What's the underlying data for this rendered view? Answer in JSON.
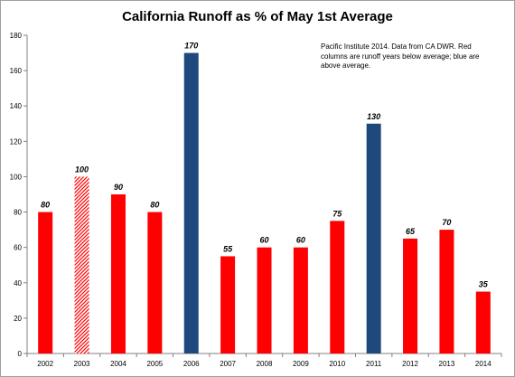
{
  "chart_data": {
    "type": "bar",
    "title": "California Runoff as % of May 1st Average",
    "annotation": "Pacific Institute 2014. Data from CA DWR. Red columns are runoff years below average; blue are above average.",
    "categories": [
      "2002",
      "2003",
      "2004",
      "2005",
      "2006",
      "2007",
      "2008",
      "2009",
      "2010",
      "2011",
      "2012",
      "2013",
      "2014"
    ],
    "values": [
      80,
      100,
      90,
      80,
      170,
      55,
      60,
      60,
      75,
      130,
      65,
      70,
      35
    ],
    "value_labels": [
      "80",
      "100",
      "90",
      "80",
      "170",
      "55",
      "60",
      "60",
      "75",
      "130",
      "65",
      "70",
      "35"
    ],
    "bar_styles": [
      "below",
      "average",
      "below",
      "below",
      "above",
      "below",
      "below",
      "below",
      "below",
      "above",
      "below",
      "below",
      "below"
    ],
    "colors": {
      "below": "#ff0000",
      "above": "#1f497d",
      "average": "#ff0000"
    },
    "ylim": [
      0,
      180
    ],
    "yticks": [
      0,
      20,
      40,
      60,
      80,
      100,
      120,
      140,
      160,
      180
    ],
    "ytick_labels": [
      "0",
      "20",
      "40",
      "60",
      "80",
      "100",
      "120",
      "140",
      "160",
      "180"
    ],
    "xlabel": "",
    "ylabel": "",
    "grid": false
  }
}
